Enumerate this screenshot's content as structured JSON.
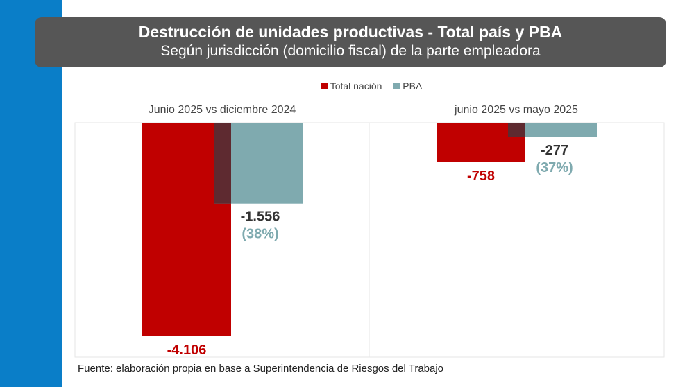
{
  "header": {
    "title": "Destrucción de unidades productivas - Total país y PBA",
    "subtitle": "Según jurisdicción (domicilio fiscal) de la parte empleadora"
  },
  "source": "Fuente: elaboración propia en base a Superintendencia de Riesgos del Trabajo",
  "colors": {
    "total": "#c00000",
    "pba": "#7faaaf",
    "overlap": "#5e2a30",
    "pct": "#7faaaf"
  },
  "chart_data": {
    "type": "bar",
    "legend": [
      "Total nación",
      "PBA"
    ],
    "legend_position": "top-center",
    "panels": [
      {
        "title": "Junio 2025 vs diciembre 2024",
        "total": -4106,
        "pba": -1556,
        "total_label": "-4.106",
        "pba_label": "-1.556",
        "pba_pct": "(38%)"
      },
      {
        "title": "junio 2025 vs mayo 2025",
        "total": -758,
        "pba": -277,
        "total_label": "-758",
        "pba_label": "-277",
        "pba_pct": "(37%)"
      }
    ],
    "ylim": [
      -4500,
      0
    ]
  }
}
